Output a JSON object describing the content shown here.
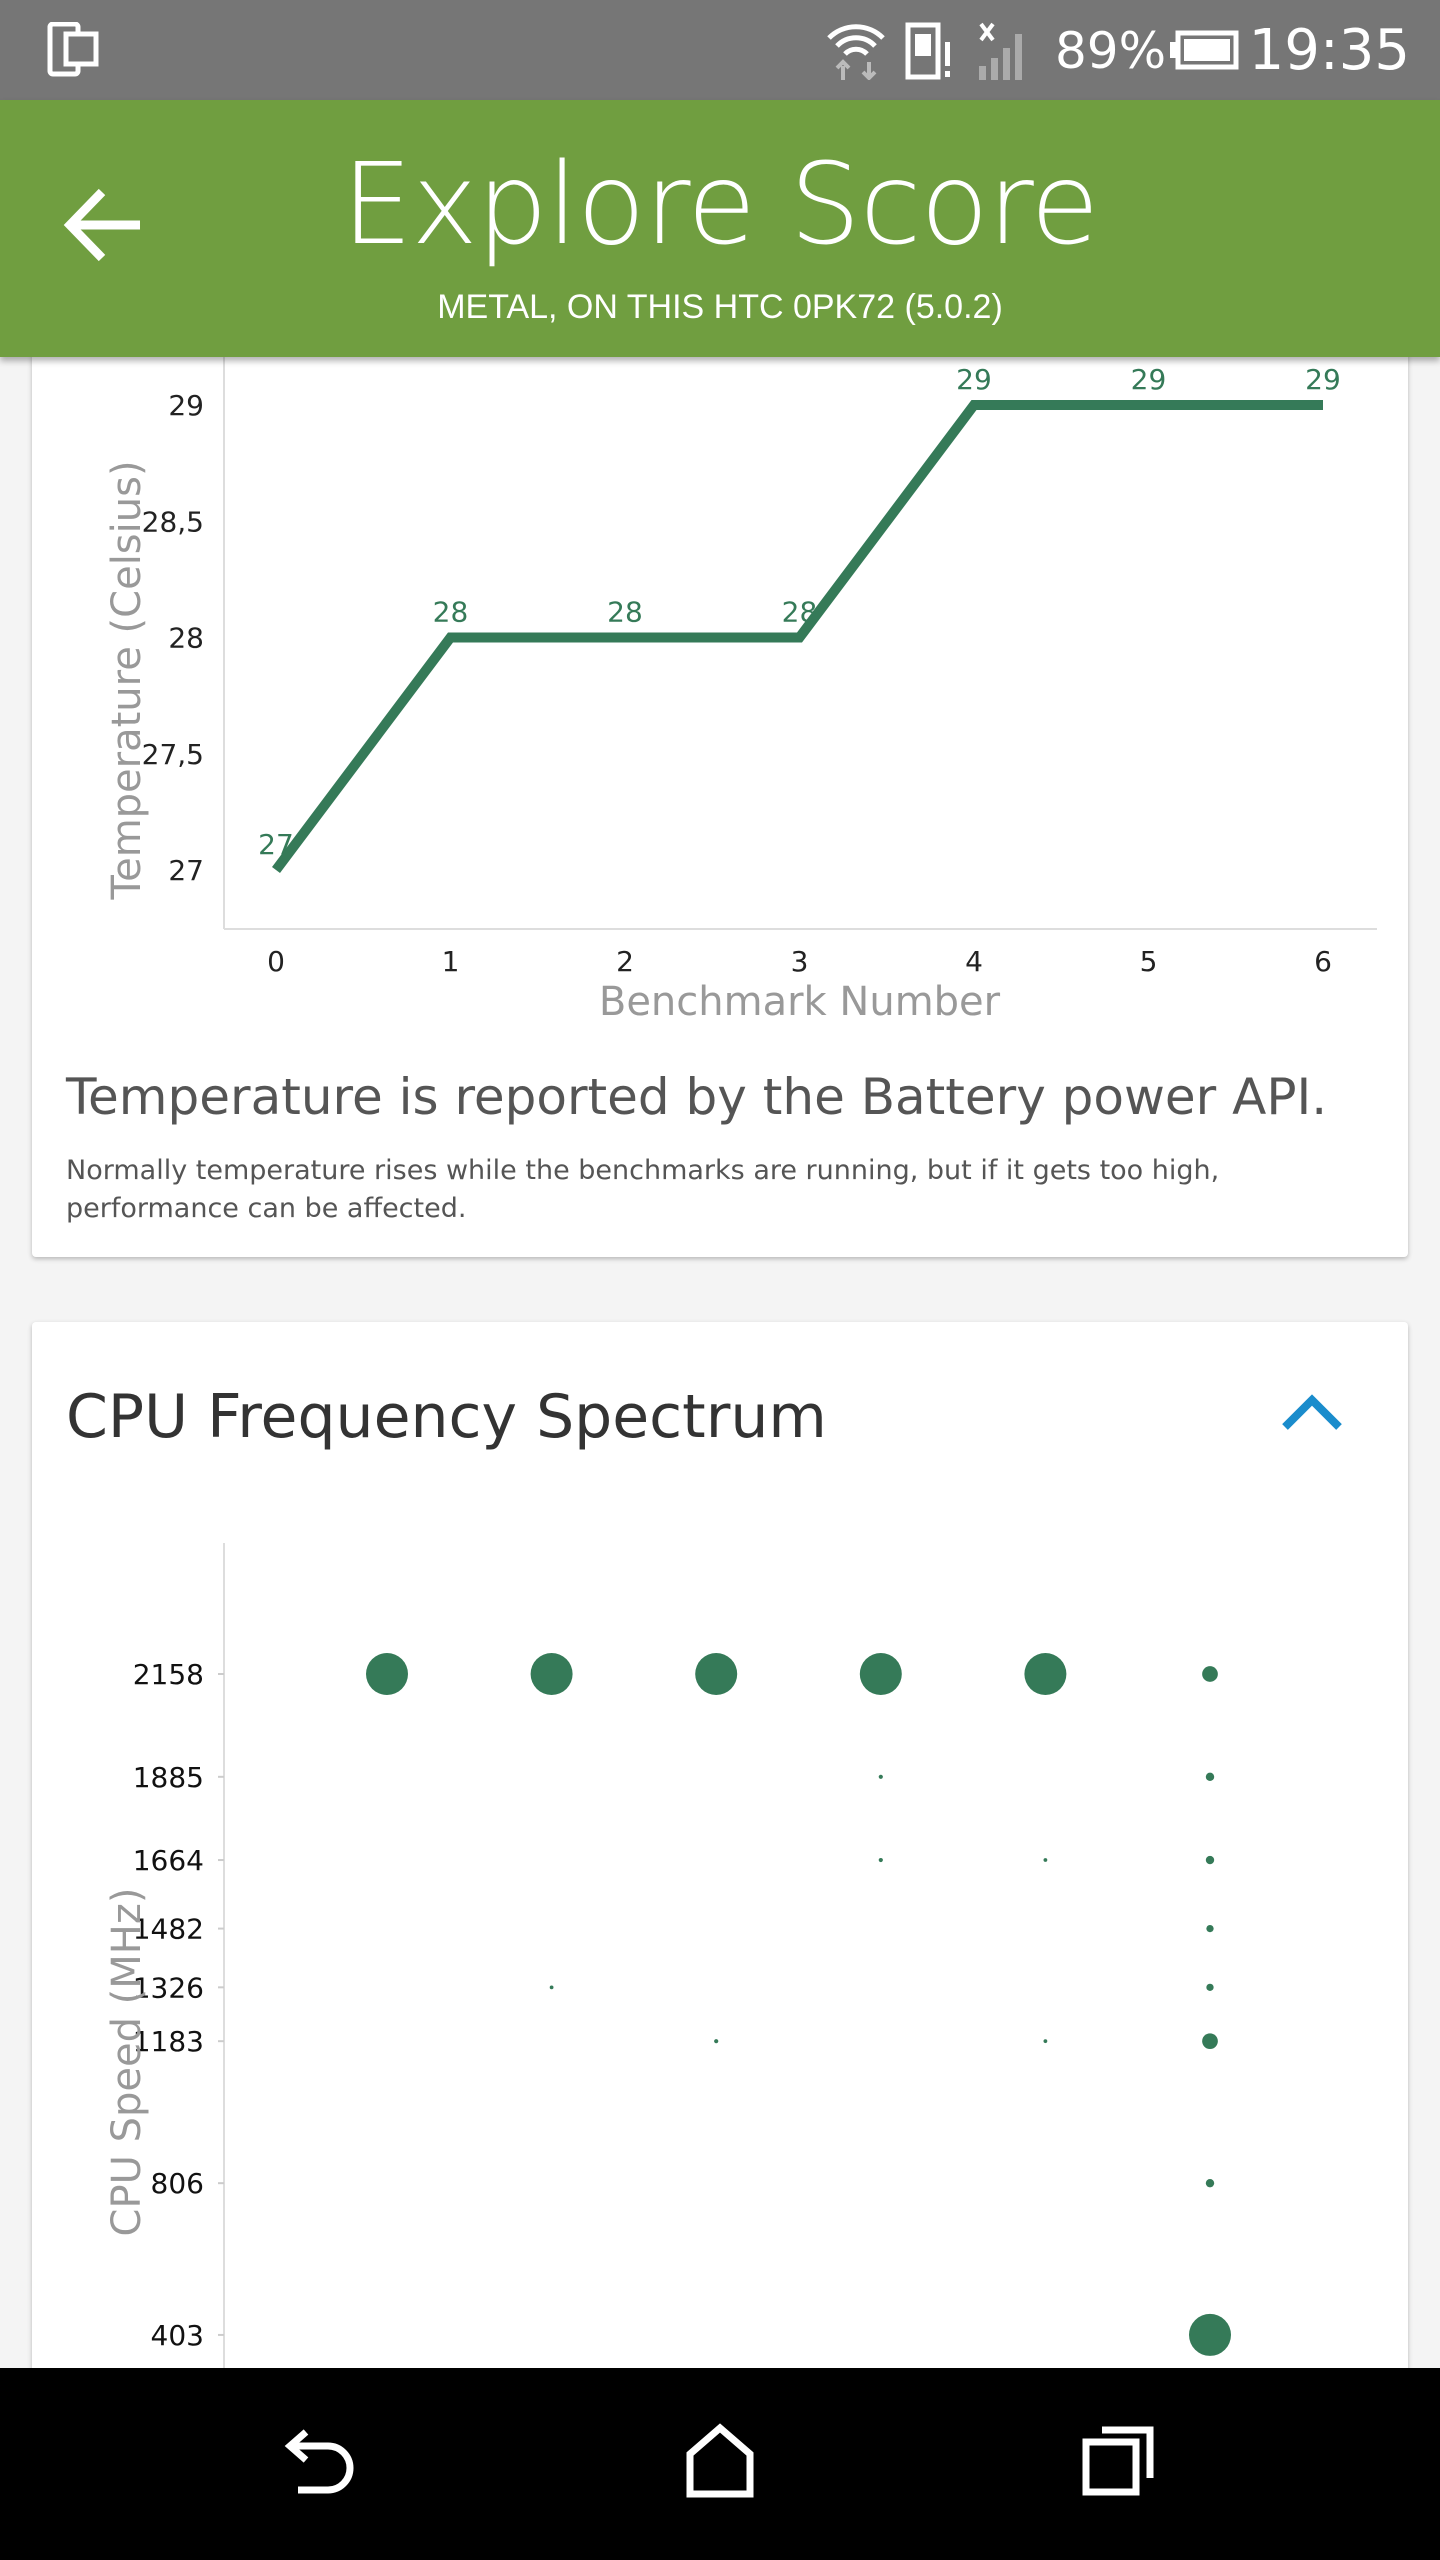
{
  "status_bar": {
    "battery_percent": "89%",
    "time": "19:35",
    "icons": [
      "phone-screen-icon",
      "wifi-icon",
      "sim-alert-icon",
      "signal-icon",
      "battery-icon"
    ]
  },
  "app_bar": {
    "title": "Explore Score",
    "subtitle": "METAL, ON THIS HTC 0PK72 (5.0.2)",
    "back_icon": "arrow-left-icon"
  },
  "temperature_card": {
    "note_title": "Temperature is reported by the Battery power API.",
    "note_body": "Normally temperature rises while the benchmarks are running, but if it gets too high, performance can be affected."
  },
  "cpu_card": {
    "title": "CPU Frequency Spectrum",
    "toggle_icon": "chevron-up-icon"
  },
  "colors": {
    "accent": "#709e40",
    "series": "#357a58",
    "chevron": "#1a8ccc"
  },
  "chart_data": [
    {
      "type": "line",
      "xlabel": "Benchmark Number",
      "ylabel": "Temperature (Celsius)",
      "x": [
        0,
        1,
        2,
        3,
        4,
        5,
        6
      ],
      "values": [
        27,
        28,
        28,
        28,
        29,
        29,
        29
      ],
      "data_labels": [
        "27",
        "28",
        "28",
        "28",
        "29",
        "29",
        "29"
      ],
      "x_ticks": [
        "0",
        "1",
        "2",
        "3",
        "4",
        "5",
        "6"
      ],
      "y_ticks": [
        "27",
        "27,5",
        "28",
        "28,5",
        "29"
      ],
      "y_tick_values": [
        27,
        27.5,
        28,
        28.5,
        29
      ],
      "xlim": [
        0,
        6
      ],
      "ylim": [
        26.9,
        29
      ],
      "grid": false
    },
    {
      "type": "scatter",
      "ylabel": "CPU Speed (MHz)",
      "y_ticks": [
        "2158",
        "1885",
        "1664",
        "1482",
        "1326",
        "1183",
        "806",
        "403"
      ],
      "y_tick_values": [
        2158,
        1885,
        1664,
        1482,
        1326,
        1183,
        806,
        403
      ],
      "columns": 6,
      "points": [
        {
          "x": 0,
          "y": 2158,
          "weight": 1.0
        },
        {
          "x": 1,
          "y": 2158,
          "weight": 1.0
        },
        {
          "x": 1,
          "y": 1326,
          "weight": 0.008
        },
        {
          "x": 2,
          "y": 2158,
          "weight": 1.0
        },
        {
          "x": 2,
          "y": 1183,
          "weight": 0.01
        },
        {
          "x": 3,
          "y": 2158,
          "weight": 1.0
        },
        {
          "x": 3,
          "y": 1885,
          "weight": 0.01
        },
        {
          "x": 3,
          "y": 1664,
          "weight": 0.01
        },
        {
          "x": 4,
          "y": 2158,
          "weight": 1.0
        },
        {
          "x": 4,
          "y": 1664,
          "weight": 0.008
        },
        {
          "x": 4,
          "y": 1183,
          "weight": 0.008
        },
        {
          "x": 5,
          "y": 2158,
          "weight": 0.14
        },
        {
          "x": 5,
          "y": 1885,
          "weight": 0.04
        },
        {
          "x": 5,
          "y": 1664,
          "weight": 0.04
        },
        {
          "x": 5,
          "y": 1482,
          "weight": 0.03
        },
        {
          "x": 5,
          "y": 1326,
          "weight": 0.03
        },
        {
          "x": 5,
          "y": 1183,
          "weight": 0.14
        },
        {
          "x": 5,
          "y": 806,
          "weight": 0.04
        },
        {
          "x": 5,
          "y": 403,
          "weight": 1.0
        }
      ],
      "grid": false
    }
  ],
  "nav_bar": {
    "icons": [
      "back-icon",
      "home-icon",
      "recents-icon"
    ]
  }
}
